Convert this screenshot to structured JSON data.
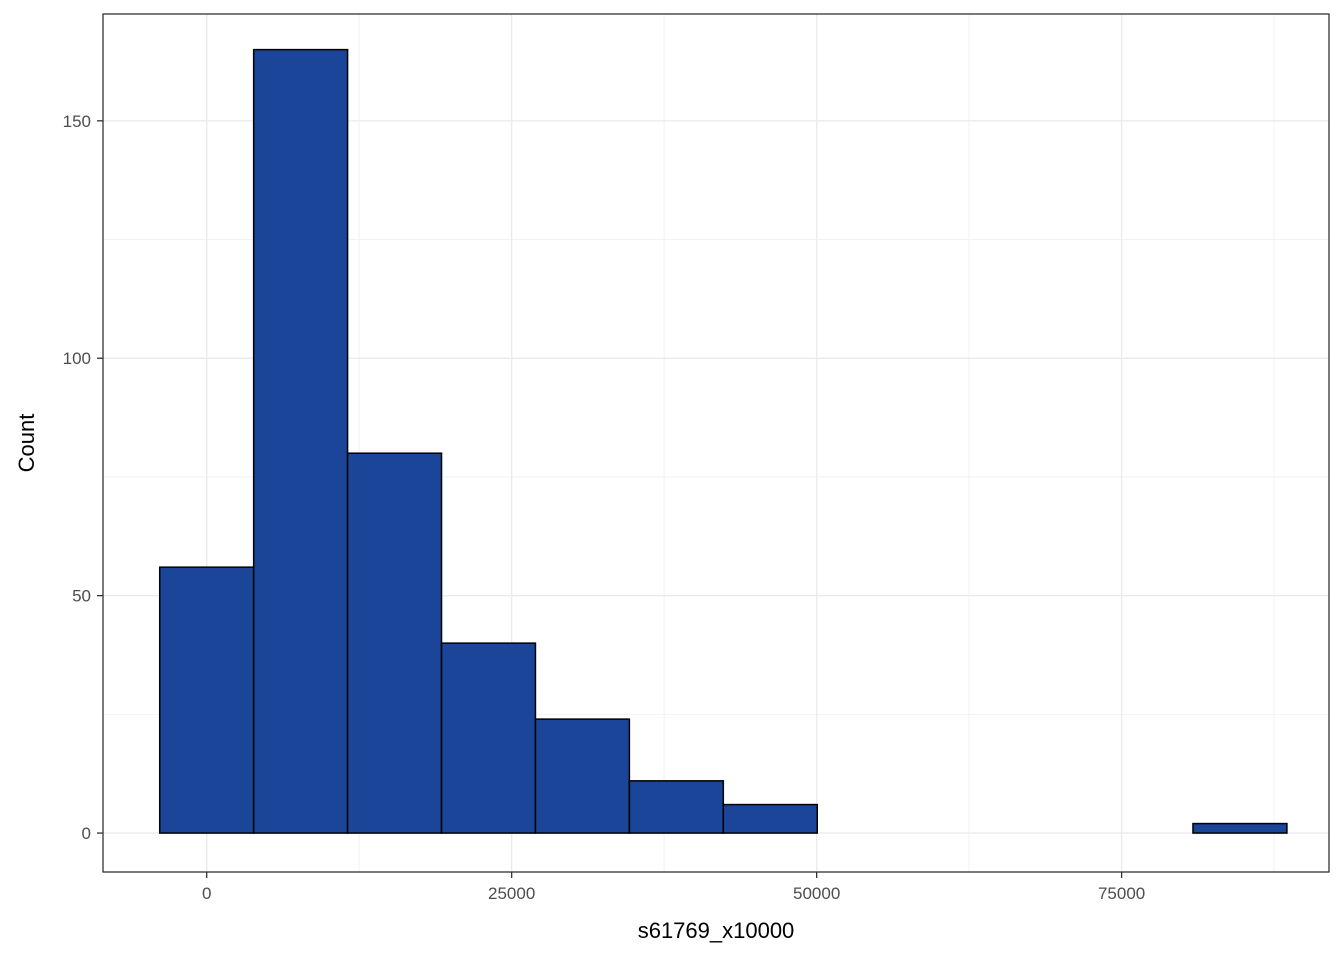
{
  "chart_data": {
    "type": "bar",
    "subtype": "histogram",
    "title": "",
    "xlabel": "s61769_x10000",
    "ylabel": "Count",
    "xlim": [
      -8500,
      92000
    ],
    "ylim": [
      -8.2,
      172.5
    ],
    "x_ticks": [
      0,
      25000,
      50000,
      75000
    ],
    "x_tick_labels": [
      "0",
      "25000",
      "50000",
      "75000"
    ],
    "y_ticks": [
      0,
      50,
      100,
      150
    ],
    "y_tick_labels": [
      "0",
      "50",
      "100",
      "150"
    ],
    "grid": true,
    "legend": "none",
    "fill_color": "#1a4599",
    "edge_color": "#000000",
    "bins": [
      {
        "x0": -3850,
        "x1": 3850,
        "count": 56
      },
      {
        "x0": 3850,
        "x1": 11550,
        "count": 165
      },
      {
        "x0": 11550,
        "x1": 19250,
        "count": 80
      },
      {
        "x0": 19250,
        "x1": 26950,
        "count": 40
      },
      {
        "x0": 26950,
        "x1": 34650,
        "count": 24
      },
      {
        "x0": 34650,
        "x1": 42350,
        "count": 11
      },
      {
        "x0": 42350,
        "x1": 50050,
        "count": 6
      },
      {
        "x0": 50050,
        "x1": 57750,
        "count": 0
      },
      {
        "x0": 57750,
        "x1": 65450,
        "count": 0
      },
      {
        "x0": 65450,
        "x1": 73150,
        "count": 0
      },
      {
        "x0": 73150,
        "x1": 80850,
        "count": 0
      },
      {
        "x0": 80850,
        "x1": 88550,
        "count": 2
      }
    ]
  }
}
